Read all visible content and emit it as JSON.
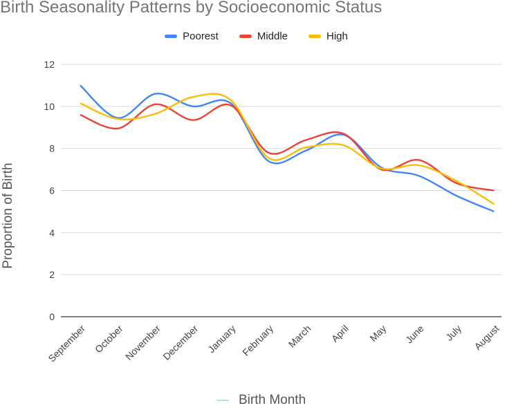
{
  "chart_data": {
    "type": "line",
    "title": "Birth Seasonality Patterns by Socioeconomic Status",
    "xlabel": "Birth Month",
    "ylabel": "Proportion of Birth",
    "ylim": [
      0,
      12
    ],
    "yticks": [
      0,
      2,
      4,
      6,
      8,
      10,
      12
    ],
    "grid": true,
    "legend_position": "top-center",
    "categories": [
      "September",
      "October",
      "November",
      "December",
      "January",
      "February",
      "March",
      "April",
      "May",
      "June",
      "July",
      "August"
    ],
    "series": [
      {
        "name": "Poorest",
        "color": "#4285f4",
        "values": [
          11.0,
          9.45,
          10.6,
          10.0,
          10.15,
          7.4,
          7.9,
          8.65,
          7.1,
          6.7,
          5.75,
          5.0
        ]
      },
      {
        "name": "Middle",
        "color": "#ea4335",
        "values": [
          9.6,
          8.95,
          10.1,
          9.35,
          10.05,
          7.8,
          8.4,
          8.7,
          7.0,
          7.45,
          6.35,
          6.0
        ]
      },
      {
        "name": "High",
        "color": "#fbbc04",
        "values": [
          10.15,
          9.4,
          9.65,
          10.45,
          10.3,
          7.55,
          8.05,
          8.15,
          7.05,
          7.2,
          6.45,
          5.35
        ]
      }
    ]
  }
}
